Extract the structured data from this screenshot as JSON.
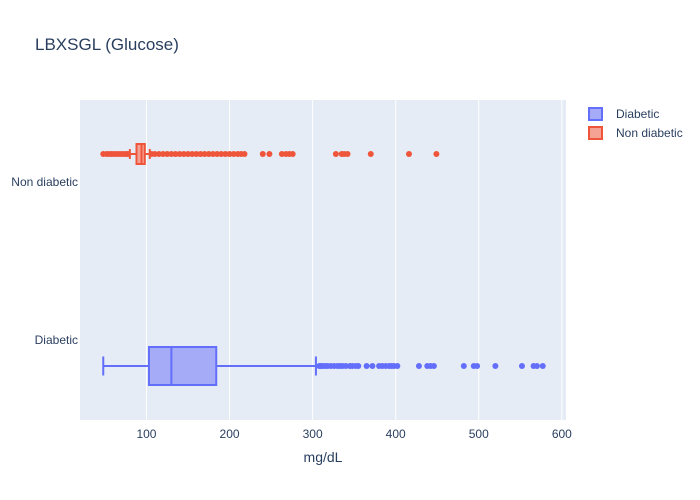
{
  "chart_data": {
    "type": "box",
    "orientation": "horizontal",
    "title": "LBXSGL (Glucose)",
    "xlabel": "mg/dL",
    "ylabel": "",
    "xlim": [
      20,
      605
    ],
    "x_ticks": [
      100,
      200,
      300,
      400,
      500,
      600
    ],
    "categories": [
      "Diabetic",
      "Non diabetic"
    ],
    "grid": true,
    "legend_position": "top-right",
    "series": [
      {
        "name": "Diabetic",
        "category": "Diabetic",
        "color": "#636efa",
        "fill": "#a5abf7",
        "min": 48,
        "q1": 103,
        "median": 130,
        "q3": 184,
        "max": 304,
        "outliers": [
          308,
          310,
          312,
          315,
          318,
          322,
          326,
          330,
          333,
          336,
          340,
          345,
          348,
          352,
          355,
          365,
          372,
          380,
          384,
          388,
          392,
          395,
          398,
          402,
          428,
          438,
          442,
          446,
          482,
          494,
          498,
          520,
          552,
          566,
          570,
          577
        ]
      },
      {
        "name": "Non diabetic",
        "category": "Non diabetic",
        "color": "#ef553b",
        "fill": "#f5a295",
        "min": 80,
        "q1": 88,
        "median": 94,
        "q3": 98,
        "max": 104,
        "outliers": [
          48,
          52,
          55,
          58,
          61,
          64,
          67,
          70,
          73,
          76,
          78,
          106,
          110,
          115,
          120,
          125,
          130,
          135,
          140,
          145,
          150,
          155,
          160,
          165,
          170,
          175,
          180,
          185,
          190,
          195,
          200,
          205,
          210,
          214,
          218,
          240,
          248,
          263,
          268,
          272,
          276,
          328,
          335,
          338,
          342,
          370,
          416,
          449
        ]
      }
    ]
  }
}
